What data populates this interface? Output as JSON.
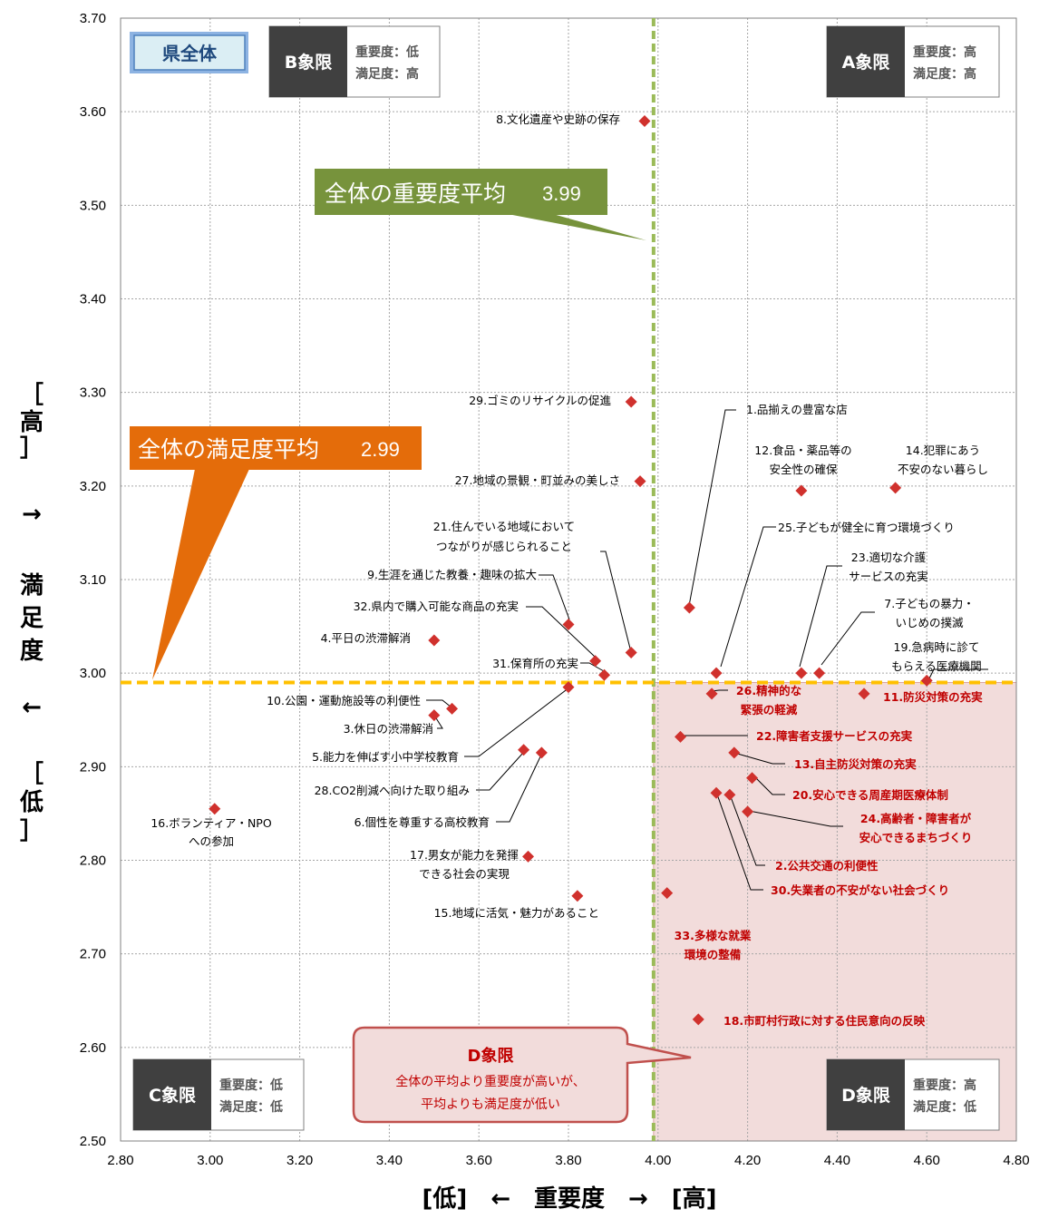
{
  "chart_data": {
    "type": "scatter",
    "title": "",
    "xlabel": "[低]　←　重要度　→　[高]",
    "ylabel": "[高]　→　満足度　←　[低]",
    "xlim": [
      2.8,
      4.8
    ],
    "ylim": [
      2.5,
      3.7
    ],
    "x_ticks": [
      "2.80",
      "3.00",
      "3.20",
      "3.40",
      "3.60",
      "3.80",
      "4.00",
      "4.20",
      "4.40",
      "4.60",
      "4.80"
    ],
    "y_ticks": [
      "2.50",
      "2.60",
      "2.70",
      "2.80",
      "2.90",
      "3.00",
      "3.10",
      "3.20",
      "3.30",
      "3.40",
      "3.50",
      "3.60",
      "3.70"
    ],
    "grid": true,
    "marker_color": "#d0312d",
    "avg_importance": 3.99,
    "avg_satisfaction": 2.99,
    "avg_importance_label": "全体の重要度平均",
    "avg_importance_value": "3.99",
    "avg_satisfaction_label": "全体の満足度平均",
    "avg_satisfaction_value": "2.99",
    "points": [
      {
        "label": "1.品揃えの豊富な店",
        "x": 4.07,
        "y": 3.07,
        "highlight": false
      },
      {
        "label": "2.公共交通の利便性",
        "x": 4.16,
        "y": 2.87,
        "highlight": true
      },
      {
        "label": "3.休日の渋滞解消",
        "x": 3.5,
        "y": 2.955,
        "highlight": false
      },
      {
        "label": "4.平日の渋滞解消",
        "x": 3.5,
        "y": 3.035,
        "highlight": false
      },
      {
        "label": "5.能力を伸ばす小中学校教育",
        "x": 3.8,
        "y": 2.985,
        "highlight": false
      },
      {
        "label": "6.個性を尊重する高校教育",
        "x": 3.74,
        "y": 2.915,
        "highlight": false
      },
      {
        "label": "7.子どもの暴力・いじめの撲滅",
        "x": 4.36,
        "y": 3.0,
        "highlight": false
      },
      {
        "label": "8.文化遺産や史跡の保存",
        "x": 3.97,
        "y": 3.59,
        "highlight": false
      },
      {
        "label": "9.生涯を通じた教養・趣味の拡大",
        "x": 3.8,
        "y": 3.052,
        "highlight": false
      },
      {
        "label": "10.公園・運動施設等の利便性",
        "x": 3.54,
        "y": 2.962,
        "highlight": false
      },
      {
        "label": "11.防災対策の充実",
        "x": 4.46,
        "y": 2.978,
        "highlight": true
      },
      {
        "label": "12.食品・薬品等の安全性の確保",
        "x": 4.32,
        "y": 3.195,
        "highlight": false
      },
      {
        "label": "13.自主防災対策の充実",
        "x": 4.17,
        "y": 2.915,
        "highlight": true
      },
      {
        "label": "14.犯罪にあう不安のない暮らし",
        "x": 4.53,
        "y": 3.198,
        "highlight": false
      },
      {
        "label": "15.地域に活気・魅力があること",
        "x": 3.82,
        "y": 2.762,
        "highlight": false
      },
      {
        "label": "16.ボランティア・NPOへの参加",
        "x": 3.01,
        "y": 2.855,
        "highlight": false
      },
      {
        "label": "17.男女が能力を発揮できる社会の実現",
        "x": 3.71,
        "y": 2.804,
        "highlight": false
      },
      {
        "label": "18.市町村行政に対する住民意向の反映",
        "x": 4.09,
        "y": 2.63,
        "highlight": true
      },
      {
        "label": "19.急病時に診てもらえる医療機関",
        "x": 4.6,
        "y": 2.992,
        "highlight": false
      },
      {
        "label": "20.安心できる周産期医療体制",
        "x": 4.21,
        "y": 2.888,
        "highlight": true
      },
      {
        "label": "21.住んでいる地域においてつながりが感じられること",
        "x": 3.94,
        "y": 3.022,
        "highlight": false
      },
      {
        "label": "22.障害者支援サービスの充実",
        "x": 4.05,
        "y": 2.932,
        "highlight": true
      },
      {
        "label": "23.適切な介護サービスの充実",
        "x": 4.32,
        "y": 3.0,
        "highlight": false
      },
      {
        "label": "24.高齢者・障害者が安心できるまちづくり",
        "x": 4.2,
        "y": 2.852,
        "highlight": true
      },
      {
        "label": "25.子どもが健全に育つ環境づくり",
        "x": 4.13,
        "y": 3.0,
        "highlight": false
      },
      {
        "label": "26.精神的な緊張の軽減",
        "x": 4.12,
        "y": 2.978,
        "highlight": true
      },
      {
        "label": "27.地域の景観・町並みの美しさ",
        "x": 3.96,
        "y": 3.205,
        "highlight": false
      },
      {
        "label": "28.CO2削減へ向けた取り組み",
        "x": 3.7,
        "y": 2.918,
        "highlight": false
      },
      {
        "label": "29.ゴミのリサイクルの促進",
        "x": 3.94,
        "y": 3.29,
        "highlight": false
      },
      {
        "label": "30.失業者の不安がない社会づくり",
        "x": 4.13,
        "y": 2.872,
        "highlight": true
      },
      {
        "label": "31.保育所の充実",
        "x": 3.88,
        "y": 2.998,
        "highlight": false
      },
      {
        "label": "32.県内で購入可能な商品の充実",
        "x": 3.86,
        "y": 3.013,
        "highlight": false
      },
      {
        "label": "33.多様な就業環境の整備",
        "x": 4.02,
        "y": 2.765,
        "highlight": true
      }
    ]
  },
  "badge_title": "県全体",
  "quadrants": {
    "A": {
      "name": "A象限",
      "line1": "重要度：高",
      "line2": "満足度：高"
    },
    "B": {
      "name": "B象限",
      "line1": "重要度：低",
      "line2": "満足度：高"
    },
    "C": {
      "name": "C象限",
      "line1": "重要度：低",
      "line2": "満足度：低"
    },
    "D": {
      "name": "D象限",
      "line1": "重要度：高",
      "line2": "満足度：低"
    }
  },
  "d_callout": {
    "title": "D象限",
    "line1": "全体の平均より重要度が高いが、",
    "line2": "平均よりも満足度が低い"
  },
  "colors": {
    "importance_avg": "#77933c",
    "satisfaction_avg": "#e46c0a",
    "d_region": "#f2dcdb",
    "highlight_text": "#c00000",
    "badge_bg": "#dbeef4",
    "quadrant_dark": "#404040"
  }
}
